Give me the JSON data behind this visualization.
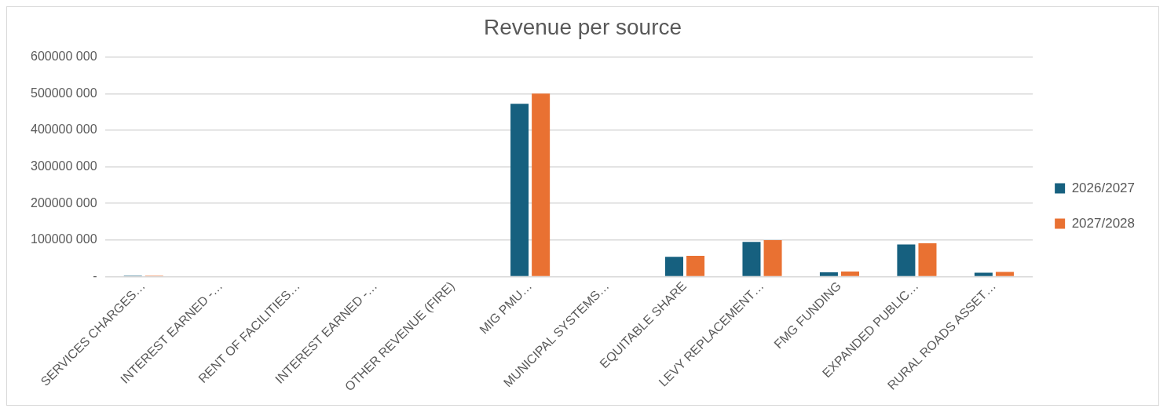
{
  "chart_data": {
    "type": "bar",
    "title": "Revenue per source",
    "categories": [
      "SERVICES CHARGES…",
      "INTEREST EARNED -…",
      "RENT OF FACILITIES…",
      "INTEREST EARNED -…",
      "OTHER REVENUE (FIRE)",
      "MIG PMU…",
      "MUNICIPAL SYSTEMS…",
      "EQUITABLE SHARE",
      "LEVY REPLACEMENT…",
      "FMG FUNDING",
      "EXPANDED PUBLIC…",
      "RURAL ROADS ASSET…"
    ],
    "series": [
      {
        "name": "2026/2027",
        "color": "#16607f",
        "values": [
          3000000,
          0,
          0,
          0,
          0,
          472000000,
          0,
          54000000,
          95000000,
          12000000,
          88000000,
          11000000
        ]
      },
      {
        "name": "2027/2028",
        "color": "#e97132",
        "values": [
          3000000,
          0,
          0,
          0,
          0,
          500000000,
          0,
          57000000,
          100000000,
          14000000,
          91000000,
          13000000
        ]
      }
    ],
    "ylim": [
      0,
      600000000
    ],
    "yticks": [
      {
        "value": 0,
        "label": "-"
      },
      {
        "value": 100000000,
        "label": "100000 000"
      },
      {
        "value": 200000000,
        "label": "200000 000"
      },
      {
        "value": 300000000,
        "label": "300000 000"
      },
      {
        "value": 400000000,
        "label": "400000 000"
      },
      {
        "value": 500000000,
        "label": "500000 000"
      },
      {
        "value": 600000000,
        "label": "600000 000"
      }
    ],
    "grid": "y",
    "legend": "right"
  }
}
